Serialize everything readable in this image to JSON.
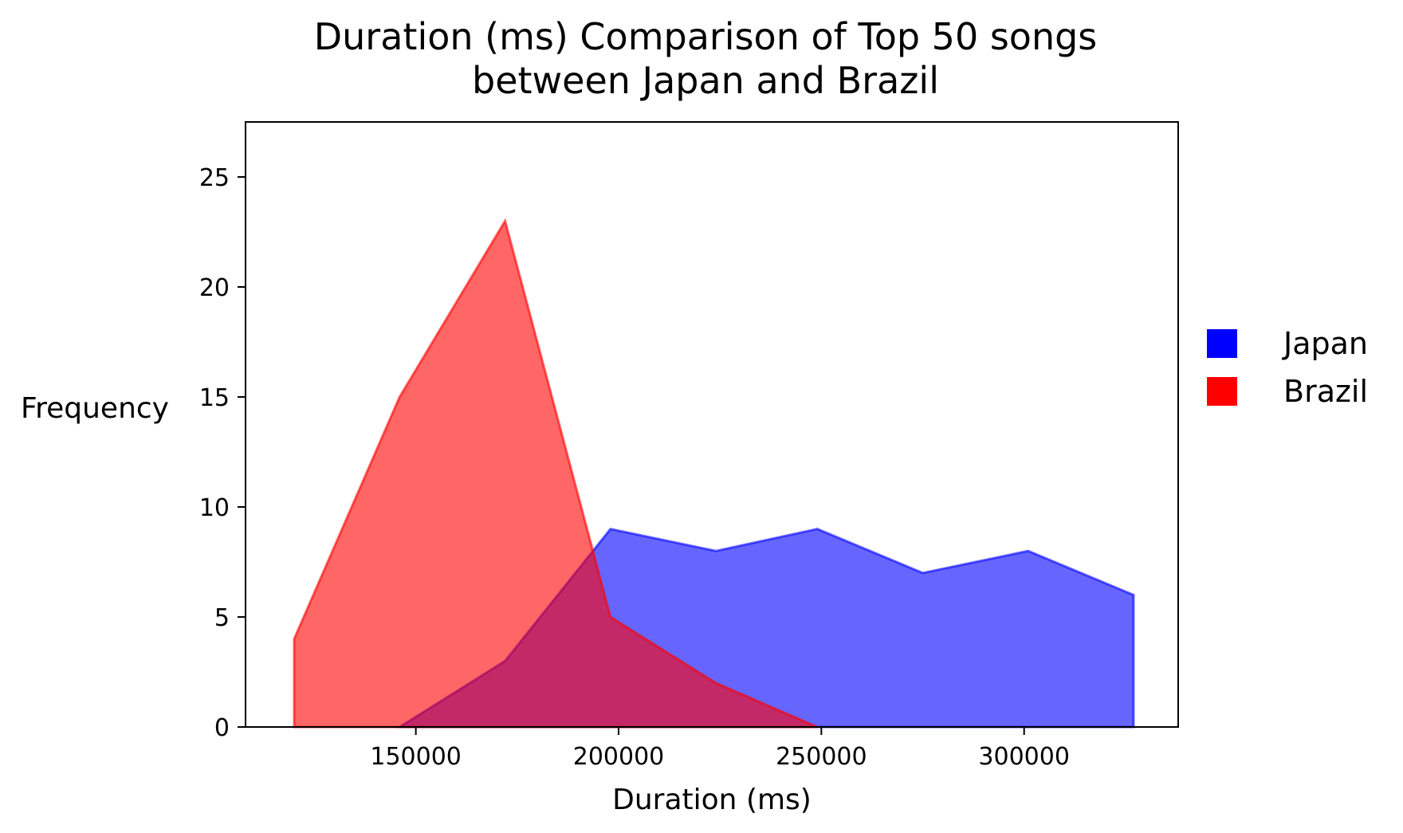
{
  "chart_data": {
    "type": "area",
    "title_lines": [
      "Duration (ms) Comparison of Top 50 songs",
      "between Japan and Brazil"
    ],
    "xlabel": "Duration (ms)",
    "ylabel": "Frequency",
    "xlim": [
      108000,
      338000
    ],
    "ylim": [
      0,
      27.5
    ],
    "xticks": [
      150000,
      200000,
      250000,
      300000
    ],
    "yticks": [
      0,
      5,
      10,
      15,
      20,
      25
    ],
    "series": [
      {
        "name": "Japan",
        "color": "#0000ff",
        "alpha": 0.6,
        "x": [
          146000,
          172000,
          198000,
          224000,
          249000,
          275000,
          301000,
          327000
        ],
        "y": [
          0,
          3,
          9,
          8,
          9,
          7,
          8,
          6
        ]
      },
      {
        "name": "Brazil",
        "color": "#ff0000",
        "alpha": 0.6,
        "x": [
          120000,
          146000,
          172000,
          198000,
          224000,
          249000
        ],
        "y": [
          4,
          15,
          23,
          5,
          2,
          0
        ]
      }
    ],
    "legend": {
      "position": "right",
      "entries": [
        "Japan",
        "Brazil"
      ]
    }
  }
}
